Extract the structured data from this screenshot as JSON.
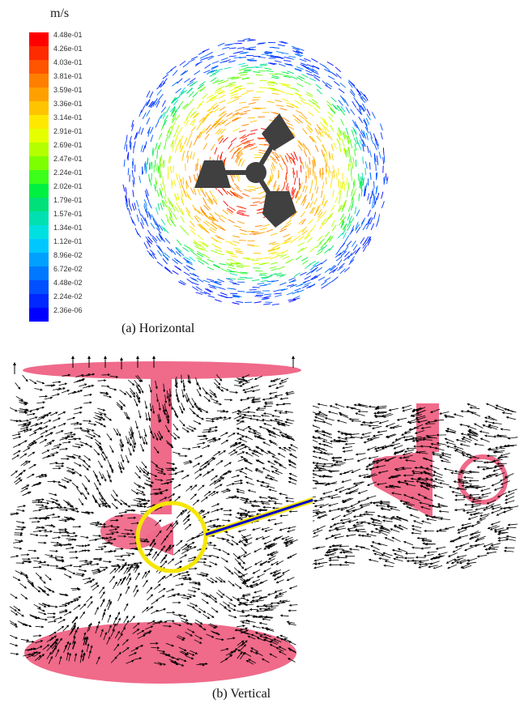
{
  "colorbar": {
    "unit": "m/s",
    "ticks": [
      "4.48e-01",
      "4.26e-01",
      "4.03e-01",
      "3.81e-01",
      "3.59e-01",
      "3.36e-01",
      "3.14e-01",
      "2.91e-01",
      "2.69e-01",
      "2.47e-01",
      "2.24e-01",
      "2.02e-01",
      "1.79e-01",
      "1.57e-01",
      "1.34e-01",
      "1.12e-01",
      "8.96e-02",
      "6.72e-02",
      "4.48e-02",
      "2.24e-02",
      "2.36e-06"
    ],
    "colors": [
      "#ff0000",
      "#ff2a00",
      "#ff5400",
      "#ff7f00",
      "#ffa000",
      "#ffc400",
      "#ffe800",
      "#e6ff00",
      "#b4ff00",
      "#7dff00",
      "#3cff1a",
      "#00f040",
      "#00e07a",
      "#00e0b0",
      "#00e0e0",
      "#00c8ff",
      "#00a0ff",
      "#0078ff",
      "#0050ff",
      "#0028ff",
      "#0000ff"
    ]
  },
  "panel_a": {
    "caption": "(a) Horizontal"
  },
  "panel_b": {
    "caption": "(b) Vertical"
  },
  "style": {
    "impeller": "#404040",
    "shaft": "#f06a8a",
    "highlight": "#f5e600",
    "pointer": "#0000cc"
  }
}
